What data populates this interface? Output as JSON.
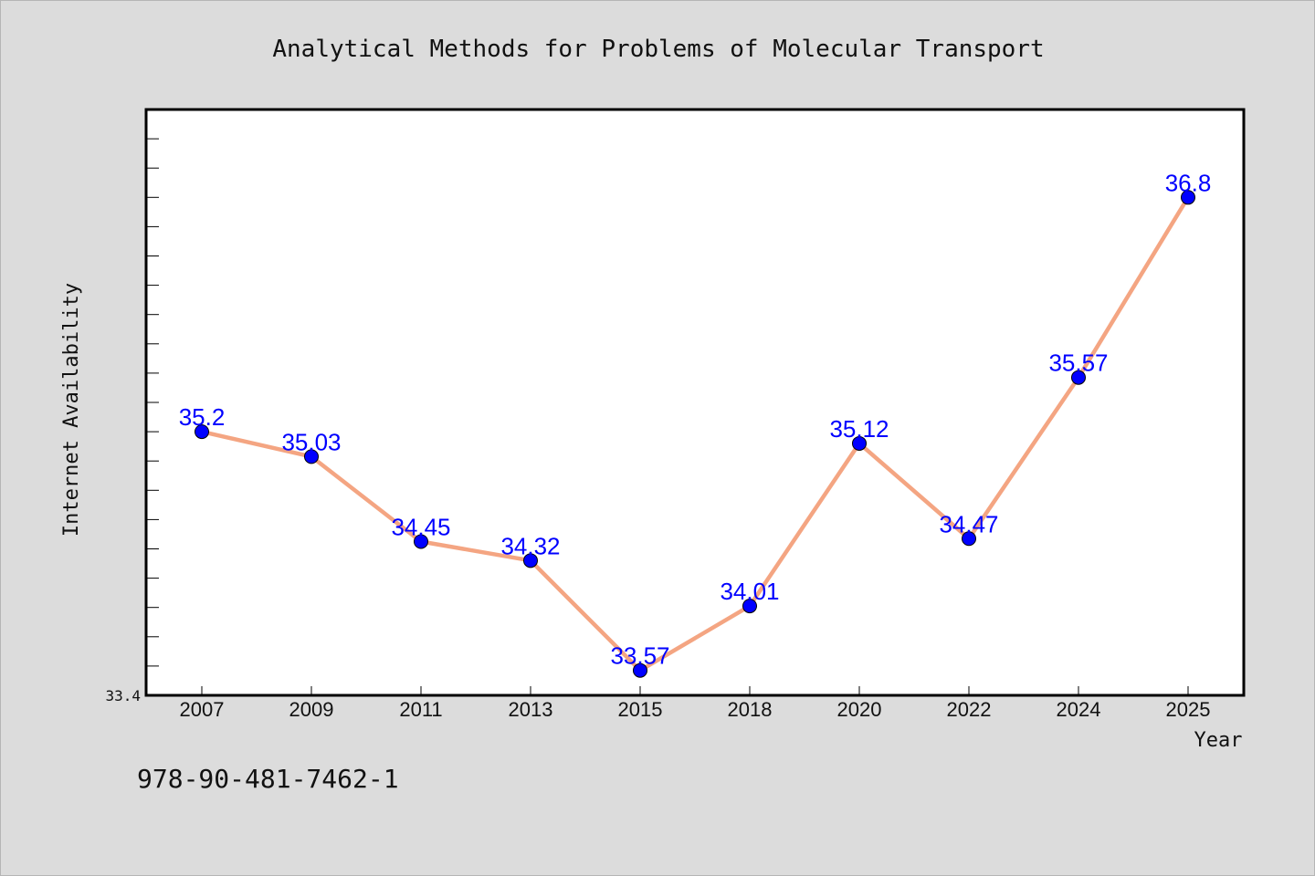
{
  "colors": {
    "background": "#dcdcdc",
    "plot_background": "#ffffff",
    "line": "#f4a582",
    "marker": "#0000ff",
    "data_label": "#0000ff"
  },
  "footer": {
    "isbn": "978-90-481-7462-1"
  },
  "chart_data": {
    "type": "line",
    "title": "Analytical Methods for Problems of Molecular Transport",
    "xlabel": "Year",
    "ylabel": "Internet Availability",
    "categories": [
      "2007",
      "2009",
      "2011",
      "2013",
      "2015",
      "2018",
      "2020",
      "2022",
      "2024",
      "2025"
    ],
    "series": [
      {
        "values": [
          35.2,
          35.03,
          34.45,
          34.32,
          33.57,
          34.01,
          35.12,
          34.47,
          35.57,
          36.8
        ]
      }
    ],
    "data_labels": [
      "35.2",
      "35.03",
      "34.45",
      "34.32",
      "33.57",
      "34.01",
      "35.12",
      "34.47",
      "35.57",
      "36.8"
    ],
    "ylim": [
      33.4,
      37.4
    ],
    "yticks_labeled": [
      "33.4"
    ],
    "y_minor_tick_step": 0.2,
    "grid": false,
    "legend": "none"
  }
}
